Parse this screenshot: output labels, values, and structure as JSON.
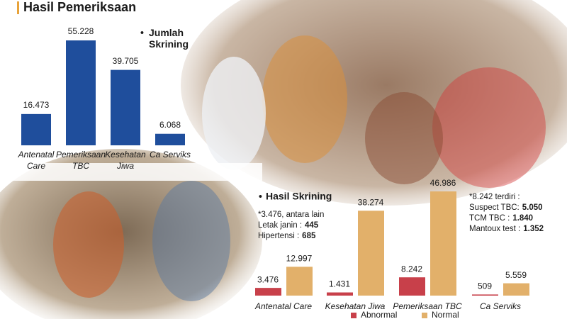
{
  "chart_data": [
    {
      "type": "bar",
      "title": "Hasil Pemeriksaan",
      "categories": [
        "Antenatal Care",
        "Pemeriksaan TBC",
        "Kesehatan Jiwa",
        "Ca Serviks"
      ],
      "series": [
        {
          "name": "Jumlah Skrining",
          "color": "#1f4e9c",
          "values": [
            16473,
            55228,
            39705,
            6068
          ],
          "value_labels": [
            "16.473",
            "55.228",
            "39.705",
            "6.068"
          ]
        }
      ]
    },
    {
      "type": "grouped-bar",
      "title": "Hasil Skrining",
      "categories": [
        "Antenatal Care",
        "Kesehatan Jiwa",
        "Pemeriksaan TBC",
        "Ca Serviks"
      ],
      "series": [
        {
          "name": "Abnormal",
          "color": "#c8404a",
          "values": [
            3476,
            1431,
            8242,
            509
          ],
          "value_labels": [
            "3.476",
            "1.431",
            "8.242",
            "509"
          ]
        },
        {
          "name": "Normal",
          "color": "#e2b06a",
          "values": [
            12997,
            38274,
            46986,
            5559
          ],
          "value_labels": [
            "12.997",
            "38.274",
            "46.986",
            "5.559"
          ]
        }
      ],
      "annotations": [
        {
          "head": "*3.476, antara lain",
          "lines": [
            {
              "label": "Letak janin :",
              "value": "445"
            },
            {
              "label": "Hipertensi :",
              "value": "685"
            }
          ]
        },
        {
          "head": "*8.242 terdiri :",
          "lines": [
            {
              "label": "Suspect TBC:",
              "value": "5.050"
            },
            {
              "label": "TCM TBC :",
              "value": "1.840"
            },
            {
              "label": "Mantoux test :",
              "value": "1.352"
            }
          ]
        }
      ]
    }
  ]
}
